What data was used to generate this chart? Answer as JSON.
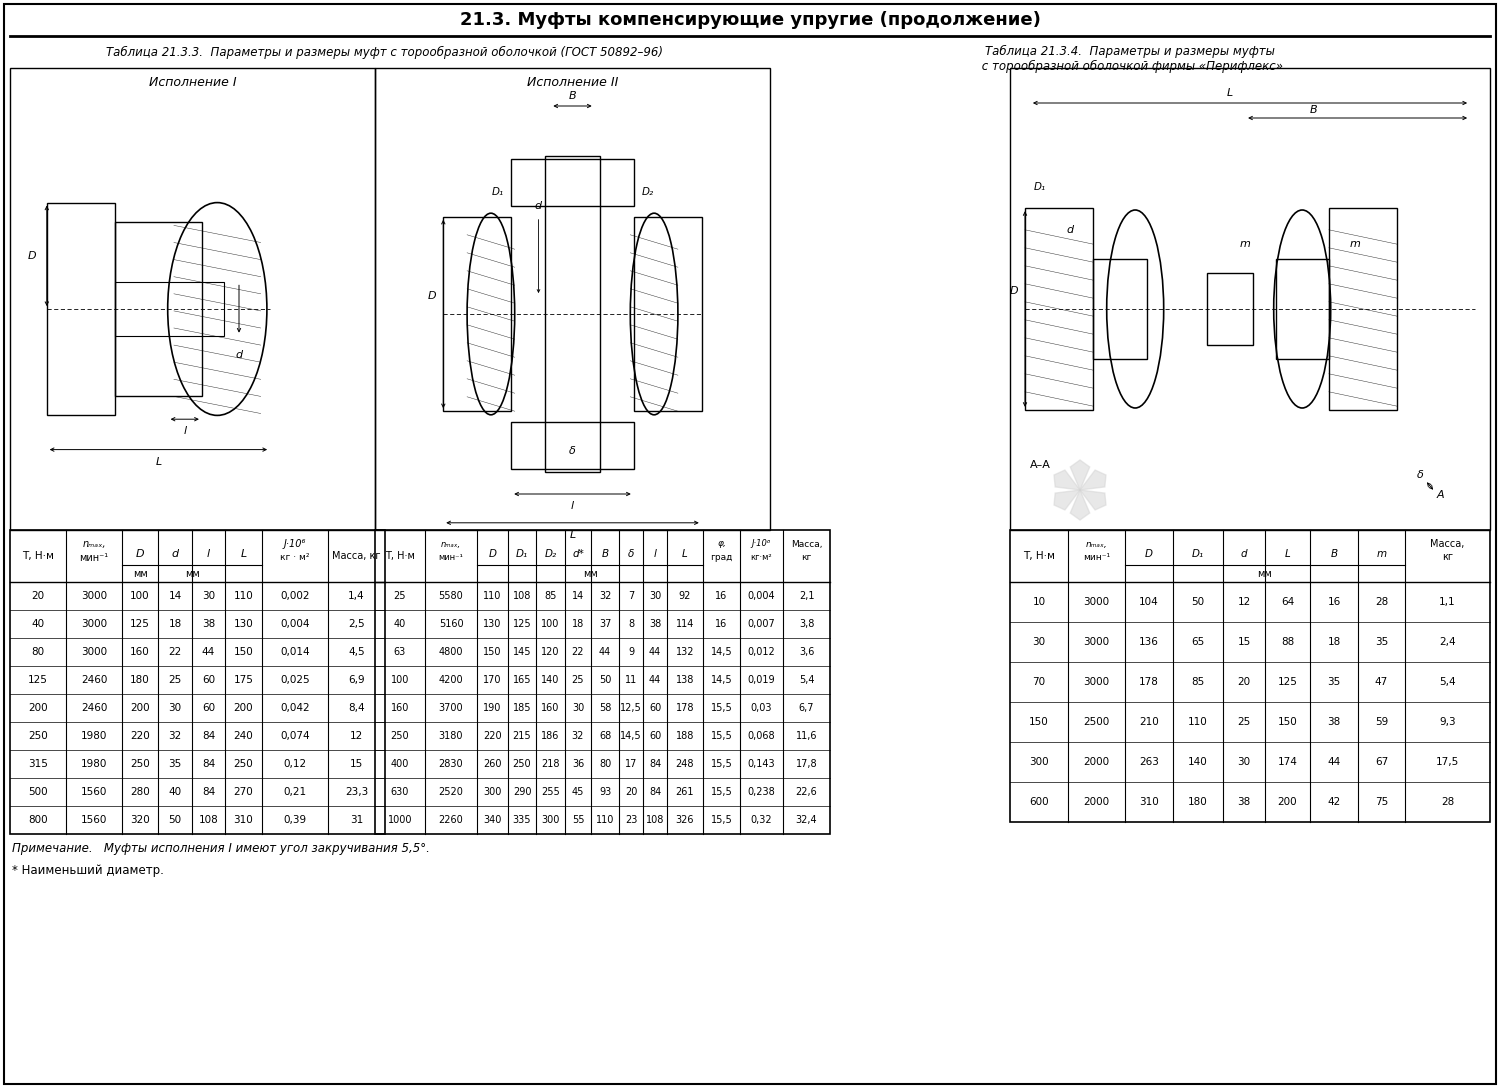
{
  "title": "21.3. Муфты компенсирующие упругие (продолжение)",
  "table1_caption": "Таблица 21.3.3.  Параметры и размеры муфт с торообразной оболочкой (ГОСТ 50892–96)",
  "table2_caption": "Таблица 21.3.4.  Параметры и размеры муфты\n с торообразной оболочкой фирмы «Перифлекс»",
  "exec1_label": "Исполнение I",
  "exec2_label": "Исполнение II",
  "note1": "Примечание.   Муфты исполнения I имеют угол закручивания 5,5°.",
  "note2": "* Наименьший диаметр.",
  "table1_data": [
    [
      "20",
      "3000",
      "100",
      "14",
      "30",
      "110",
      "0,002",
      "1,4"
    ],
    [
      "40",
      "3000",
      "125",
      "18",
      "38",
      "130",
      "0,004",
      "2,5"
    ],
    [
      "80",
      "3000",
      "160",
      "22",
      "44",
      "150",
      "0,014",
      "4,5"
    ],
    [
      "125",
      "2460",
      "180",
      "25",
      "60",
      "175",
      "0,025",
      "6,9"
    ],
    [
      "200",
      "2460",
      "200",
      "30",
      "60",
      "200",
      "0,042",
      "8,4"
    ],
    [
      "250",
      "1980",
      "220",
      "32",
      "84",
      "240",
      "0,074",
      "12"
    ],
    [
      "315",
      "1980",
      "250",
      "35",
      "84",
      "250",
      "0,12",
      "15"
    ],
    [
      "500",
      "1560",
      "280",
      "40",
      "84",
      "270",
      "0,21",
      "23,3"
    ],
    [
      "800",
      "1560",
      "320",
      "50",
      "108",
      "310",
      "0,39",
      "31"
    ]
  ],
  "table2_data": [
    [
      "25",
      "5580",
      "110",
      "108",
      "85",
      "14",
      "32",
      "7",
      "30",
      "92",
      "16",
      "0,004",
      "2,1"
    ],
    [
      "40",
      "5160",
      "130",
      "125",
      "100",
      "18",
      "37",
      "8",
      "38",
      "114",
      "16",
      "0,007",
      "3,8"
    ],
    [
      "63",
      "4800",
      "150",
      "145",
      "120",
      "22",
      "44",
      "9",
      "44",
      "132",
      "14,5",
      "0,012",
      "3,6"
    ],
    [
      "100",
      "4200",
      "170",
      "165",
      "140",
      "25",
      "50",
      "11",
      "44",
      "138",
      "14,5",
      "0,019",
      "5,4"
    ],
    [
      "160",
      "3700",
      "190",
      "185",
      "160",
      "30",
      "58",
      "12,5",
      "60",
      "178",
      "15,5",
      "0,03",
      "6,7"
    ],
    [
      "250",
      "3180",
      "220",
      "215",
      "186",
      "32",
      "68",
      "14,5",
      "60",
      "188",
      "15,5",
      "0,068",
      "11,6"
    ],
    [
      "400",
      "2830",
      "260",
      "250",
      "218",
      "36",
      "80",
      "17",
      "84",
      "248",
      "15,5",
      "0,143",
      "17,8"
    ],
    [
      "630",
      "2520",
      "300",
      "290",
      "255",
      "45",
      "93",
      "20",
      "84",
      "261",
      "15,5",
      "0,238",
      "22,6"
    ],
    [
      "1000",
      "2260",
      "340",
      "335",
      "300",
      "55",
      "110",
      "23",
      "108",
      "326",
      "15,5",
      "0,32",
      "32,4"
    ]
  ],
  "table3_data": [
    [
      "10",
      "3000",
      "104",
      "50",
      "12",
      "64",
      "16",
      "28",
      "1,1"
    ],
    [
      "30",
      "3000",
      "136",
      "65",
      "15",
      "88",
      "18",
      "35",
      "2,4"
    ],
    [
      "70",
      "3000",
      "178",
      "85",
      "20",
      "125",
      "35",
      "47",
      "5,4"
    ],
    [
      "150",
      "2500",
      "210",
      "110",
      "25",
      "150",
      "38",
      "59",
      "9,3"
    ],
    [
      "300",
      "2000",
      "263",
      "140",
      "30",
      "174",
      "44",
      "67",
      "17,5"
    ],
    [
      "600",
      "2000",
      "310",
      "180",
      "38",
      "200",
      "42",
      "75",
      "28"
    ]
  ],
  "bg_color": "#ffffff"
}
